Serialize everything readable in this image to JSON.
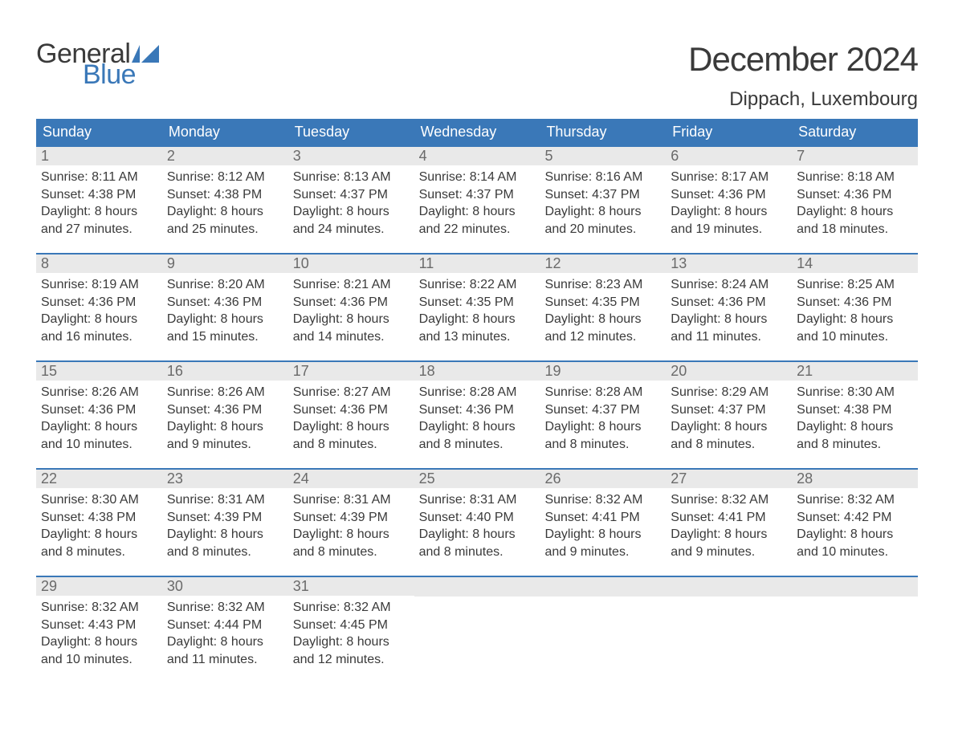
{
  "logo": {
    "text_general": "General",
    "text_blue": "Blue",
    "flag_color": "#3a78b8"
  },
  "title": "December 2024",
  "location": "Dippach, Luxembourg",
  "colors": {
    "header_bg": "#3a78b8",
    "header_text": "#ffffff",
    "daynum_bg": "#e9e9e9",
    "daynum_text": "#6a6a6a",
    "body_text": "#3a3a3a",
    "week_border": "#3a78b8",
    "page_bg": "#ffffff"
  },
  "typography": {
    "title_fontsize": 42,
    "location_fontsize": 24,
    "weekday_fontsize": 18,
    "daynum_fontsize": 18,
    "body_fontsize": 16,
    "font_family": "Arial"
  },
  "weekdays": [
    "Sunday",
    "Monday",
    "Tuesday",
    "Wednesday",
    "Thursday",
    "Friday",
    "Saturday"
  ],
  "weeks": [
    [
      {
        "n": "1",
        "sunrise": "Sunrise: 8:11 AM",
        "sunset": "Sunset: 4:38 PM",
        "d1": "Daylight: 8 hours",
        "d2": "and 27 minutes."
      },
      {
        "n": "2",
        "sunrise": "Sunrise: 8:12 AM",
        "sunset": "Sunset: 4:38 PM",
        "d1": "Daylight: 8 hours",
        "d2": "and 25 minutes."
      },
      {
        "n": "3",
        "sunrise": "Sunrise: 8:13 AM",
        "sunset": "Sunset: 4:37 PM",
        "d1": "Daylight: 8 hours",
        "d2": "and 24 minutes."
      },
      {
        "n": "4",
        "sunrise": "Sunrise: 8:14 AM",
        "sunset": "Sunset: 4:37 PM",
        "d1": "Daylight: 8 hours",
        "d2": "and 22 minutes."
      },
      {
        "n": "5",
        "sunrise": "Sunrise: 8:16 AM",
        "sunset": "Sunset: 4:37 PM",
        "d1": "Daylight: 8 hours",
        "d2": "and 20 minutes."
      },
      {
        "n": "6",
        "sunrise": "Sunrise: 8:17 AM",
        "sunset": "Sunset: 4:36 PM",
        "d1": "Daylight: 8 hours",
        "d2": "and 19 minutes."
      },
      {
        "n": "7",
        "sunrise": "Sunrise: 8:18 AM",
        "sunset": "Sunset: 4:36 PM",
        "d1": "Daylight: 8 hours",
        "d2": "and 18 minutes."
      }
    ],
    [
      {
        "n": "8",
        "sunrise": "Sunrise: 8:19 AM",
        "sunset": "Sunset: 4:36 PM",
        "d1": "Daylight: 8 hours",
        "d2": "and 16 minutes."
      },
      {
        "n": "9",
        "sunrise": "Sunrise: 8:20 AM",
        "sunset": "Sunset: 4:36 PM",
        "d1": "Daylight: 8 hours",
        "d2": "and 15 minutes."
      },
      {
        "n": "10",
        "sunrise": "Sunrise: 8:21 AM",
        "sunset": "Sunset: 4:36 PM",
        "d1": "Daylight: 8 hours",
        "d2": "and 14 minutes."
      },
      {
        "n": "11",
        "sunrise": "Sunrise: 8:22 AM",
        "sunset": "Sunset: 4:35 PM",
        "d1": "Daylight: 8 hours",
        "d2": "and 13 minutes."
      },
      {
        "n": "12",
        "sunrise": "Sunrise: 8:23 AM",
        "sunset": "Sunset: 4:35 PM",
        "d1": "Daylight: 8 hours",
        "d2": "and 12 minutes."
      },
      {
        "n": "13",
        "sunrise": "Sunrise: 8:24 AM",
        "sunset": "Sunset: 4:36 PM",
        "d1": "Daylight: 8 hours",
        "d2": "and 11 minutes."
      },
      {
        "n": "14",
        "sunrise": "Sunrise: 8:25 AM",
        "sunset": "Sunset: 4:36 PM",
        "d1": "Daylight: 8 hours",
        "d2": "and 10 minutes."
      }
    ],
    [
      {
        "n": "15",
        "sunrise": "Sunrise: 8:26 AM",
        "sunset": "Sunset: 4:36 PM",
        "d1": "Daylight: 8 hours",
        "d2": "and 10 minutes."
      },
      {
        "n": "16",
        "sunrise": "Sunrise: 8:26 AM",
        "sunset": "Sunset: 4:36 PM",
        "d1": "Daylight: 8 hours",
        "d2": "and 9 minutes."
      },
      {
        "n": "17",
        "sunrise": "Sunrise: 8:27 AM",
        "sunset": "Sunset: 4:36 PM",
        "d1": "Daylight: 8 hours",
        "d2": "and 8 minutes."
      },
      {
        "n": "18",
        "sunrise": "Sunrise: 8:28 AM",
        "sunset": "Sunset: 4:36 PM",
        "d1": "Daylight: 8 hours",
        "d2": "and 8 minutes."
      },
      {
        "n": "19",
        "sunrise": "Sunrise: 8:28 AM",
        "sunset": "Sunset: 4:37 PM",
        "d1": "Daylight: 8 hours",
        "d2": "and 8 minutes."
      },
      {
        "n": "20",
        "sunrise": "Sunrise: 8:29 AM",
        "sunset": "Sunset: 4:37 PM",
        "d1": "Daylight: 8 hours",
        "d2": "and 8 minutes."
      },
      {
        "n": "21",
        "sunrise": "Sunrise: 8:30 AM",
        "sunset": "Sunset: 4:38 PM",
        "d1": "Daylight: 8 hours",
        "d2": "and 8 minutes."
      }
    ],
    [
      {
        "n": "22",
        "sunrise": "Sunrise: 8:30 AM",
        "sunset": "Sunset: 4:38 PM",
        "d1": "Daylight: 8 hours",
        "d2": "and 8 minutes."
      },
      {
        "n": "23",
        "sunrise": "Sunrise: 8:31 AM",
        "sunset": "Sunset: 4:39 PM",
        "d1": "Daylight: 8 hours",
        "d2": "and 8 minutes."
      },
      {
        "n": "24",
        "sunrise": "Sunrise: 8:31 AM",
        "sunset": "Sunset: 4:39 PM",
        "d1": "Daylight: 8 hours",
        "d2": "and 8 minutes."
      },
      {
        "n": "25",
        "sunrise": "Sunrise: 8:31 AM",
        "sunset": "Sunset: 4:40 PM",
        "d1": "Daylight: 8 hours",
        "d2": "and 8 minutes."
      },
      {
        "n": "26",
        "sunrise": "Sunrise: 8:32 AM",
        "sunset": "Sunset: 4:41 PM",
        "d1": "Daylight: 8 hours",
        "d2": "and 9 minutes."
      },
      {
        "n": "27",
        "sunrise": "Sunrise: 8:32 AM",
        "sunset": "Sunset: 4:41 PM",
        "d1": "Daylight: 8 hours",
        "d2": "and 9 minutes."
      },
      {
        "n": "28",
        "sunrise": "Sunrise: 8:32 AM",
        "sunset": "Sunset: 4:42 PM",
        "d1": "Daylight: 8 hours",
        "d2": "and 10 minutes."
      }
    ],
    [
      {
        "n": "29",
        "sunrise": "Sunrise: 8:32 AM",
        "sunset": "Sunset: 4:43 PM",
        "d1": "Daylight: 8 hours",
        "d2": "and 10 minutes."
      },
      {
        "n": "30",
        "sunrise": "Sunrise: 8:32 AM",
        "sunset": "Sunset: 4:44 PM",
        "d1": "Daylight: 8 hours",
        "d2": "and 11 minutes."
      },
      {
        "n": "31",
        "sunrise": "Sunrise: 8:32 AM",
        "sunset": "Sunset: 4:45 PM",
        "d1": "Daylight: 8 hours",
        "d2": "and 12 minutes."
      },
      null,
      null,
      null,
      null
    ]
  ]
}
